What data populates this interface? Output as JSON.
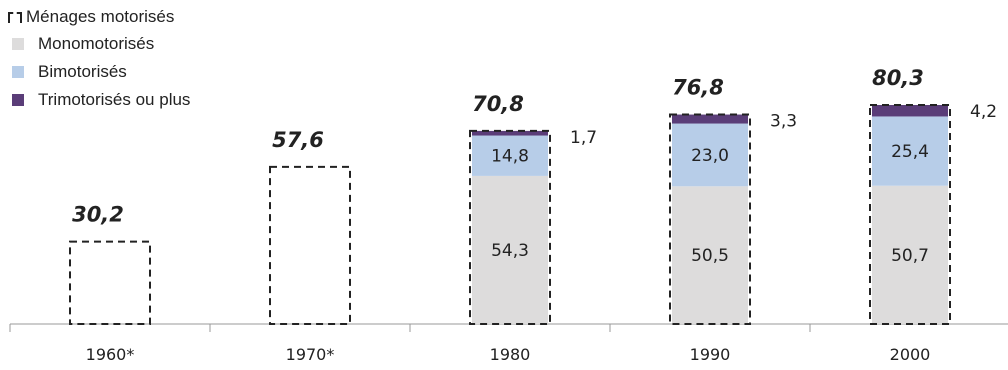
{
  "chart_data": {
    "type": "bar",
    "categories": [
      "1960*",
      "1970*",
      "1980",
      "1990",
      "2000"
    ],
    "totals": [
      30.2,
      57.6,
      70.8,
      76.8,
      80.3
    ],
    "total_labels": [
      "30,2",
      "57,6",
      "70,8",
      "76,8",
      "80,3"
    ],
    "series": [
      {
        "name": "Monomotorisés",
        "values": [
          null,
          null,
          54.3,
          50.5,
          50.7
        ],
        "labels": [
          "",
          "",
          "54,3",
          "50,5",
          "50,7"
        ],
        "color": "#dddcdc"
      },
      {
        "name": "Bimotorisés",
        "values": [
          null,
          null,
          14.8,
          23.0,
          25.4
        ],
        "labels": [
          "",
          "",
          "14,8",
          "23,0",
          "25,4"
        ],
        "color": "#b7cde8"
      },
      {
        "name": "Trimotorisés ou plus",
        "values": [
          null,
          null,
          1.7,
          3.3,
          4.2
        ],
        "labels": [
          "",
          "",
          "1,7",
          "3,3",
          "4,2"
        ],
        "color": "#5a3d78"
      }
    ],
    "outline_series_name": "Ménages motorisés",
    "ylim": [
      0,
      88
    ],
    "legend_position": "top-left",
    "grid": false
  }
}
